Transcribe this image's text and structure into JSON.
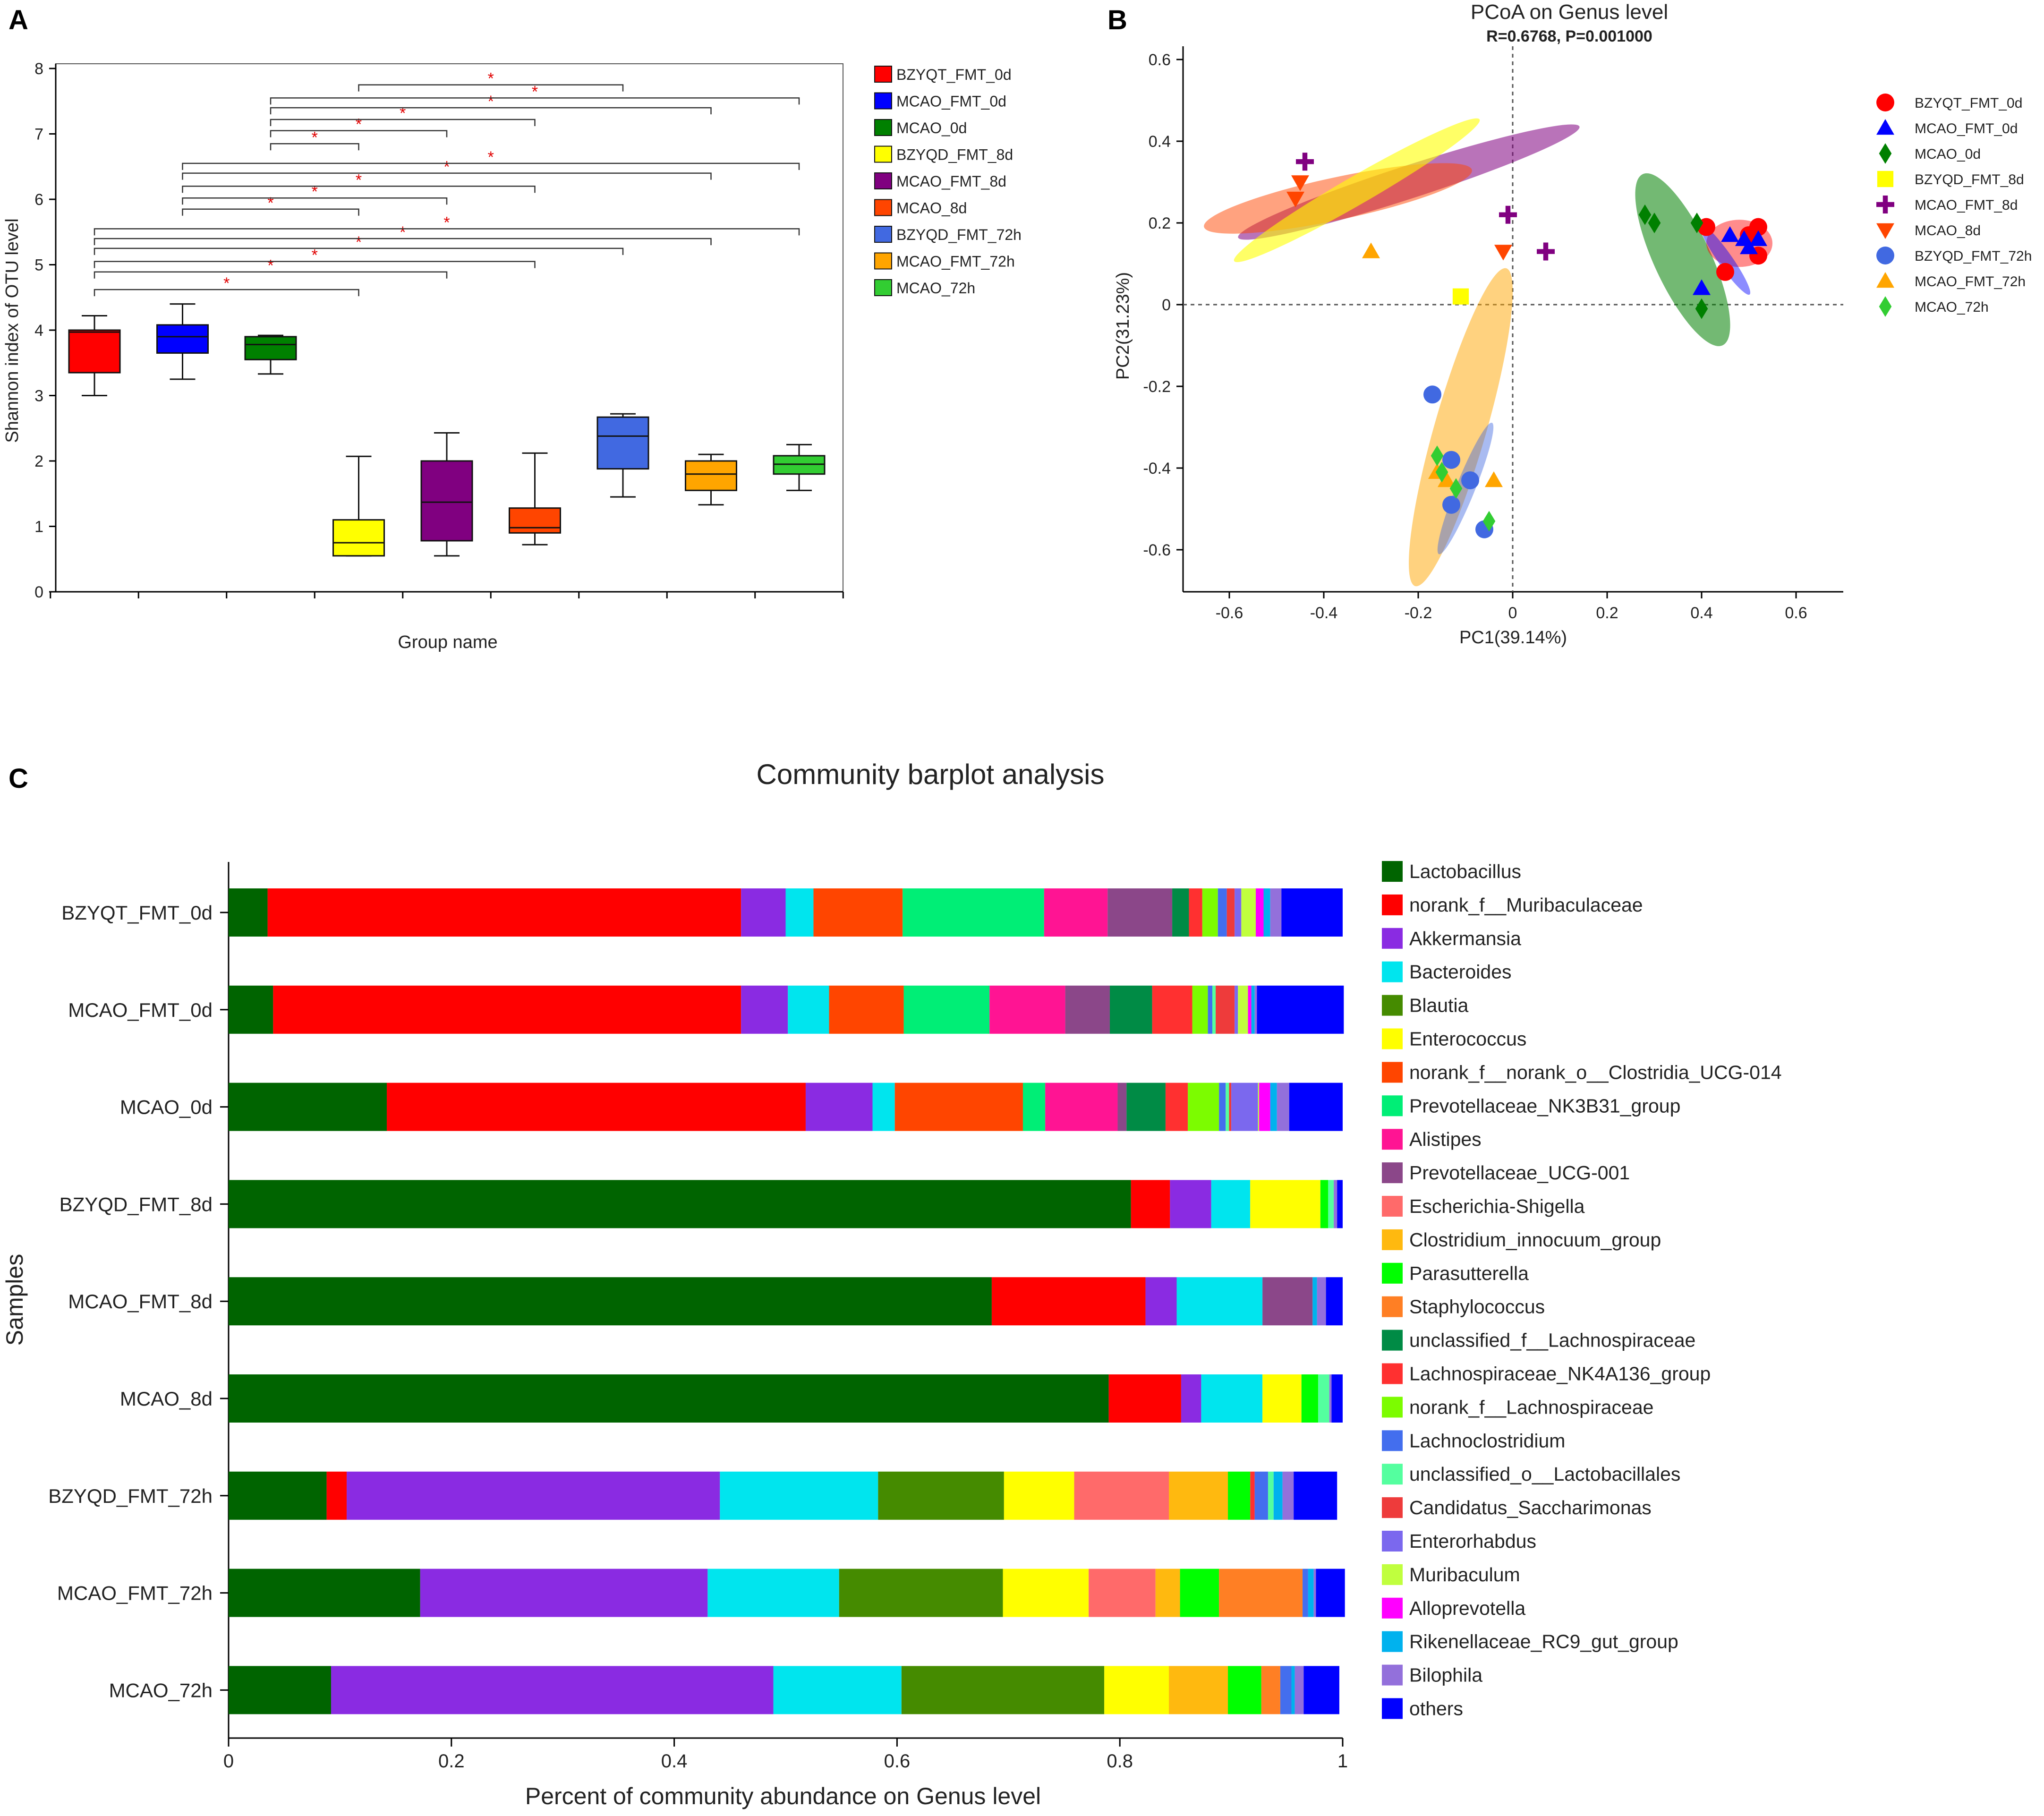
{
  "panel_labels": {
    "a": "A",
    "b": "B",
    "c": "C"
  },
  "chart_data": [
    {
      "panel": "A",
      "type": "box",
      "xlabel": "Group name",
      "ylabel": "Shannon index of OTU level",
      "ylim": [
        0,
        8
      ],
      "yticks": [
        "0",
        "1",
        "2",
        "3",
        "4",
        "5",
        "6",
        "7",
        "8"
      ],
      "groups": [
        {
          "name": "BZYQT_FMT_0d",
          "color": "#ff0000",
          "min": 3.0,
          "q1": 3.35,
          "median": 3.97,
          "q3": 4.0,
          "max": 4.22
        },
        {
          "name": "MCAO_FMT_0d",
          "color": "#0000ff",
          "min": 3.25,
          "q1": 3.65,
          "median": 3.9,
          "q3": 4.08,
          "max": 4.4
        },
        {
          "name": "MCAO_0d",
          "color": "#008000",
          "min": 3.33,
          "q1": 3.55,
          "median": 3.78,
          "q3": 3.9,
          "max": 3.92
        },
        {
          "name": "BZYQD_FMT_8d",
          "color": "#ffff00",
          "min": 0.55,
          "q1": 0.55,
          "median": 0.75,
          "q3": 1.1,
          "max": 2.07
        },
        {
          "name": "MCAO_FMT_8d",
          "color": "#800080",
          "min": 0.55,
          "q1": 0.78,
          "median": 1.37,
          "q3": 2.0,
          "max": 2.43
        },
        {
          "name": "MCAO_8d",
          "color": "#ff4500",
          "min": 0.72,
          "q1": 0.9,
          "median": 0.98,
          "q3": 1.28,
          "max": 2.12
        },
        {
          "name": "BZYQD_FMT_72h",
          "color": "#4169e1",
          "min": 1.45,
          "q1": 1.88,
          "median": 2.38,
          "q3": 2.67,
          "max": 2.72
        },
        {
          "name": "MCAO_FMT_72h",
          "color": "#ffa500",
          "min": 1.33,
          "q1": 1.55,
          "median": 1.8,
          "q3": 2.0,
          "max": 2.1
        },
        {
          "name": "MCAO_72h",
          "color": "#32cd32",
          "min": 1.55,
          "q1": 1.8,
          "median": 1.95,
          "q3": 2.08,
          "max": 2.25
        }
      ],
      "significance": [
        {
          "from": 1,
          "to": 4,
          "level": 4.62,
          "label": "*"
        },
        {
          "from": 1,
          "to": 5,
          "level": 4.89,
          "label": "*"
        },
        {
          "from": 1,
          "to": 6,
          "level": 5.05,
          "label": "*"
        },
        {
          "from": 1,
          "to": 7,
          "level": 5.25,
          "label": "*"
        },
        {
          "from": 1,
          "to": 8,
          "level": 5.4,
          "label": "*"
        },
        {
          "from": 1,
          "to": 9,
          "level": 5.55,
          "label": "*"
        },
        {
          "from": 2,
          "to": 4,
          "level": 5.85,
          "label": "*"
        },
        {
          "from": 2,
          "to": 5,
          "level": 6.02,
          "label": "*"
        },
        {
          "from": 2,
          "to": 6,
          "level": 6.2,
          "label": "*"
        },
        {
          "from": 2,
          "to": 8,
          "level": 6.4,
          "label": "*"
        },
        {
          "from": 2,
          "to": 9,
          "level": 6.55,
          "label": "*"
        },
        {
          "from": 3,
          "to": 4,
          "level": 6.85,
          "label": "*"
        },
        {
          "from": 3,
          "to": 5,
          "level": 7.05,
          "label": "*"
        },
        {
          "from": 3,
          "to": 6,
          "level": 7.22,
          "label": "*"
        },
        {
          "from": 3,
          "to": 8,
          "level": 7.4,
          "label": "*"
        },
        {
          "from": 3,
          "to": 9,
          "level": 7.55,
          "label": "*"
        },
        {
          "from": 4,
          "to": 7,
          "level": 7.75,
          "label": "*"
        }
      ],
      "legend": [
        {
          "label": "BZYQT_FMT_0d",
          "color": "#ff0000"
        },
        {
          "label": "MCAO_FMT_0d",
          "color": "#0000ff"
        },
        {
          "label": "MCAO_0d",
          "color": "#008000"
        },
        {
          "label": "BZYQD_FMT_8d",
          "color": "#ffff00"
        },
        {
          "label": "MCAO_FMT_8d",
          "color": "#800080"
        },
        {
          "label": "MCAO_8d",
          "color": "#ff4500"
        },
        {
          "label": "BZYQD_FMT_72h",
          "color": "#4169e1"
        },
        {
          "label": "MCAO_FMT_72h",
          "color": "#ffa500"
        },
        {
          "label": "MCAO_72h",
          "color": "#32cd32"
        }
      ]
    },
    {
      "panel": "B",
      "type": "scatter",
      "title": "PCoA on Genus level",
      "subtitle": "R=0.6768, P=0.001000",
      "xlabel": "PC1(39.14%)",
      "ylabel": "PC2(31.23%)",
      "xlim": [
        -0.7,
        0.7
      ],
      "ylim": [
        -0.7,
        0.6
      ],
      "xticks": [
        "-0.6",
        "-0.4",
        "-0.2",
        "0",
        "0.2",
        "0.4",
        "0.6"
      ],
      "yticks": [
        "-0.6",
        "-0.4",
        "-0.2",
        "0",
        "0.2",
        "0.4",
        "0.6"
      ],
      "ellipses": [
        {
          "group": "MCAO_0d",
          "color": "#008000",
          "cx": 0.36,
          "cy": 0.11,
          "rx": 0.2,
          "ry": 0.06,
          "angle": -65,
          "opacity": 0.55
        },
        {
          "group": "BZYQT_FMT_0d",
          "color": "#ff0000",
          "cx": 0.48,
          "cy": 0.15,
          "rx": 0.07,
          "ry": 0.05,
          "angle": 0,
          "opacity": 0.45
        },
        {
          "group": "MCAO_FMT_0d",
          "color": "#0000ff",
          "cx": 0.45,
          "cy": 0.11,
          "rx": 0.09,
          "ry": 0.015,
          "angle": -55,
          "opacity": 0.45
        },
        {
          "group": "MCAO_FMT_8d",
          "color": "#800080",
          "cx": -0.22,
          "cy": 0.3,
          "rx": 0.38,
          "ry": 0.035,
          "angle": 18,
          "opacity": 0.55
        },
        {
          "group": "MCAO_8d",
          "color": "#ff4500",
          "cx": -0.37,
          "cy": 0.26,
          "rx": 0.29,
          "ry": 0.045,
          "angle": 12,
          "opacity": 0.5
        },
        {
          "group": "BZYQD_FMT_8d",
          "color": "#ffff00",
          "cx": -0.33,
          "cy": 0.28,
          "rx": 0.3,
          "ry": 0.03,
          "angle": 30,
          "opacity": 0.6
        },
        {
          "group": "MCAO_FMT_72h",
          "color": "#ffa500",
          "cx": -0.11,
          "cy": -0.3,
          "rx": 0.35,
          "ry": 0.055,
          "angle": 74,
          "opacity": 0.5
        },
        {
          "group": "BZYQD_FMT_72h",
          "color": "#4169e1",
          "cx": -0.1,
          "cy": -0.45,
          "rx": 0.15,
          "ry": 0.02,
          "angle": 68,
          "opacity": 0.45
        }
      ],
      "series": [
        {
          "name": "BZYQT_FMT_0d",
          "color": "#ff0000",
          "marker": "circle",
          "points": [
            [
              0.41,
              0.19
            ],
            [
              0.45,
              0.08
            ],
            [
              0.5,
              0.17
            ],
            [
              0.52,
              0.19
            ],
            [
              0.52,
              0.12
            ]
          ]
        },
        {
          "name": "MCAO_FMT_0d",
          "color": "#0000ff",
          "marker": "triangle",
          "points": [
            [
              0.4,
              0.04
            ],
            [
              0.46,
              0.17
            ],
            [
              0.49,
              0.16
            ],
            [
              0.5,
              0.14
            ],
            [
              0.52,
              0.16
            ]
          ]
        },
        {
          "name": "MCAO_0d",
          "color": "#008000",
          "marker": "diamond",
          "points": [
            [
              0.28,
              0.22
            ],
            [
              0.3,
              0.2
            ],
            [
              0.39,
              0.2
            ],
            [
              0.4,
              -0.01
            ]
          ]
        },
        {
          "name": "BZYQD_FMT_8d",
          "color": "#ffff00",
          "marker": "square",
          "points": [
            [
              -0.11,
              0.02
            ]
          ]
        },
        {
          "name": "MCAO_FMT_8d",
          "color": "#800080",
          "marker": "plus",
          "points": [
            [
              -0.44,
              0.35
            ],
            [
              -0.01,
              0.22
            ],
            [
              0.07,
              0.13
            ]
          ]
        },
        {
          "name": "MCAO_8d",
          "color": "#ff4500",
          "marker": "tri_down",
          "points": [
            [
              -0.45,
              0.3
            ],
            [
              -0.46,
              0.26
            ],
            [
              -0.02,
              0.13
            ]
          ]
        },
        {
          "name": "BZYQD_FMT_72h",
          "color": "#4169e1",
          "marker": "circle",
          "points": [
            [
              -0.17,
              -0.22
            ],
            [
              -0.13,
              -0.38
            ],
            [
              -0.09,
              -0.43
            ],
            [
              -0.13,
              -0.49
            ],
            [
              -0.06,
              -0.55
            ]
          ]
        },
        {
          "name": "MCAO_FMT_72h",
          "color": "#ffa500",
          "marker": "triangle",
          "points": [
            [
              -0.3,
              0.13
            ],
            [
              -0.16,
              -0.41
            ],
            [
              -0.14,
              -0.43
            ],
            [
              -0.04,
              -0.43
            ]
          ]
        },
        {
          "name": "MCAO_72h",
          "color": "#32cd32",
          "marker": "diamond",
          "points": [
            [
              -0.16,
              -0.37
            ],
            [
              -0.15,
              -0.41
            ],
            [
              -0.12,
              -0.45
            ],
            [
              -0.05,
              -0.53
            ]
          ]
        }
      ],
      "legend": [
        {
          "label": "BZYQT_FMT_0d",
          "color": "#ff0000",
          "marker": "circle"
        },
        {
          "label": "MCAO_FMT_0d",
          "color": "#0000ff",
          "marker": "triangle"
        },
        {
          "label": "MCAO_0d",
          "color": "#008000",
          "marker": "diamond"
        },
        {
          "label": "BZYQD_FMT_8d",
          "color": "#ffff00",
          "marker": "square"
        },
        {
          "label": "MCAO_FMT_8d",
          "color": "#800080",
          "marker": "plus"
        },
        {
          "label": "MCAO_8d",
          "color": "#ff4500",
          "marker": "tri_down"
        },
        {
          "label": "BZYQD_FMT_72h",
          "color": "#4169e1",
          "marker": "circle"
        },
        {
          "label": "MCAO_FMT_72h",
          "color": "#ffa500",
          "marker": "triangle"
        },
        {
          "label": "MCAO_72h",
          "color": "#32cd32",
          "marker": "diamond"
        }
      ]
    },
    {
      "panel": "C",
      "type": "stacked_bar_horizontal",
      "title": "Community barplot analysis",
      "xlabel": "Percent of community abundance on Genus level",
      "ylabel": "Samples",
      "xlim": [
        0,
        1
      ],
      "xticks": [
        "0",
        "0.2",
        "0.4",
        "0.6",
        "0.8",
        "1"
      ],
      "genera": [
        {
          "name": "Lactobacillus",
          "color": "#006400"
        },
        {
          "name": "norank_f__Muribaculaceae",
          "color": "#ff0000"
        },
        {
          "name": "Akkermansia",
          "color": "#8a2be2"
        },
        {
          "name": "Bacteroides",
          "color": "#00e5ee"
        },
        {
          "name": "Blautia",
          "color": "#458b00"
        },
        {
          "name": "Enterococcus",
          "color": "#ffff00"
        },
        {
          "name": "norank_f__norank_o__Clostridia_UCG-014",
          "color": "#ff4500"
        },
        {
          "name": "Prevotellaceae_NK3B31_group",
          "color": "#00ee76"
        },
        {
          "name": "Alistipes",
          "color": "#ff1493"
        },
        {
          "name": "Prevotellaceae_UCG-001",
          "color": "#8b4789"
        },
        {
          "name": "Escherichia-Shigella",
          "color": "#ff6a6a"
        },
        {
          "name": "Clostridium_innocuum_group",
          "color": "#ffb90f"
        },
        {
          "name": "Parasutterella",
          "color": "#00ff00"
        },
        {
          "name": "Staphylococcus",
          "color": "#ff7f24"
        },
        {
          "name": "unclassified_f__Lachnospiraceae",
          "color": "#008b45"
        },
        {
          "name": "Lachnospiraceae_NK4A136_group",
          "color": "#ff3030"
        },
        {
          "name": "norank_f__Lachnospiraceae",
          "color": "#7cfc00"
        },
        {
          "name": "Lachnoclostridium",
          "color": "#436eee"
        },
        {
          "name": "unclassified_o__Lactobacillales",
          "color": "#54ff9f"
        },
        {
          "name": "Candidatus_Saccharimonas",
          "color": "#ee3b3b"
        },
        {
          "name": "Enterorhabdus",
          "color": "#7b68ee"
        },
        {
          "name": "Muribaculum",
          "color": "#c0ff3e"
        },
        {
          "name": "Alloprevotella",
          "color": "#ff00ff"
        },
        {
          "name": "Rikenellaceae_RC9_gut_group",
          "color": "#00b2ee"
        },
        {
          "name": "Bilophila",
          "color": "#9370db"
        },
        {
          "name": "others",
          "color": "#0000ff"
        }
      ],
      "samples": [
        {
          "name": "BZYQT_FMT_0d",
          "values": [
            0.035,
            0.425,
            0.04,
            0.025,
            0,
            0,
            0.08,
            0.127,
            0.057,
            0.058,
            0,
            0,
            0,
            0,
            0.015,
            0.012,
            0.014,
            0.008,
            0,
            0.007,
            0.006,
            0.013,
            0.007,
            0.006,
            0.01,
            0.055
          ]
        },
        {
          "name": "MCAO_FMT_0d",
          "values": [
            0.04,
            0.42,
            0.042,
            0.037,
            0,
            0,
            0.067,
            0.077,
            0.068,
            0.04,
            0,
            0,
            0,
            0,
            0.038,
            0.036,
            0.014,
            0.004,
            0.003,
            0.017,
            0.003,
            0.009,
            0.003,
            0.003,
            0.002,
            0.078
          ]
        },
        {
          "name": "MCAO_0d",
          "values": [
            0.142,
            0.376,
            0.06,
            0.02,
            0,
            0,
            0.115,
            0.02,
            0.065,
            0.008,
            0,
            0,
            0,
            0,
            0.035,
            0.02,
            0.028,
            0.006,
            0.003,
            0.002,
            0.024,
            0.001,
            0.01,
            0.006,
            0.011,
            0.048
          ]
        },
        {
          "name": "BZYQD_FMT_8d",
          "values": [
            0.81,
            0.035,
            0.037,
            0.035,
            0,
            0.063,
            0,
            0,
            0,
            0,
            0,
            0,
            0.007,
            0,
            0,
            0,
            0,
            0,
            0.005,
            0,
            0,
            0,
            0,
            0,
            0.003,
            0.005
          ]
        },
        {
          "name": "MCAO_FMT_8d",
          "values": [
            0.685,
            0.138,
            0.028,
            0.077,
            0,
            0,
            0,
            0,
            0,
            0.045,
            0,
            0,
            0,
            0,
            0,
            0,
            0,
            0,
            0,
            0,
            0,
            0,
            0,
            0.004,
            0.008,
            0.015
          ]
        },
        {
          "name": "MCAO_8d",
          "values": [
            0.79,
            0.065,
            0.018,
            0.055,
            0,
            0.035,
            0,
            0,
            0,
            0,
            0,
            0,
            0.015,
            0,
            0,
            0,
            0,
            0,
            0.01,
            0,
            0,
            0,
            0,
            0,
            0.002,
            0.01
          ]
        },
        {
          "name": "BZYQD_FMT_72h",
          "values": [
            0.088,
            0.018,
            0.335,
            0.142,
            0.113,
            0.063,
            0,
            0,
            0,
            0,
            0.085,
            0.053,
            0.02,
            0,
            0,
            0.004,
            0,
            0.012,
            0.005,
            0,
            0,
            0,
            0,
            0.008,
            0.01,
            0.039
          ]
        },
        {
          "name": "MCAO_FMT_72h",
          "values": [
            0.172,
            0,
            0.258,
            0.118,
            0.147,
            0.077,
            0,
            0,
            0,
            0,
            0.06,
            0.022,
            0.035,
            0.075,
            0,
            0,
            0,
            0.005,
            0,
            0,
            0,
            0,
            0,
            0.005,
            0.002,
            0.026
          ]
        },
        {
          "name": "MCAO_72h",
          "values": [
            0.092,
            0,
            0.397,
            0.115,
            0.182,
            0.058,
            0,
            0,
            0,
            0,
            0,
            0.053,
            0.03,
            0.017,
            0,
            0,
            0,
            0.01,
            0,
            0,
            0,
            0,
            0,
            0.003,
            0.008,
            0.032
          ]
        }
      ]
    }
  ]
}
